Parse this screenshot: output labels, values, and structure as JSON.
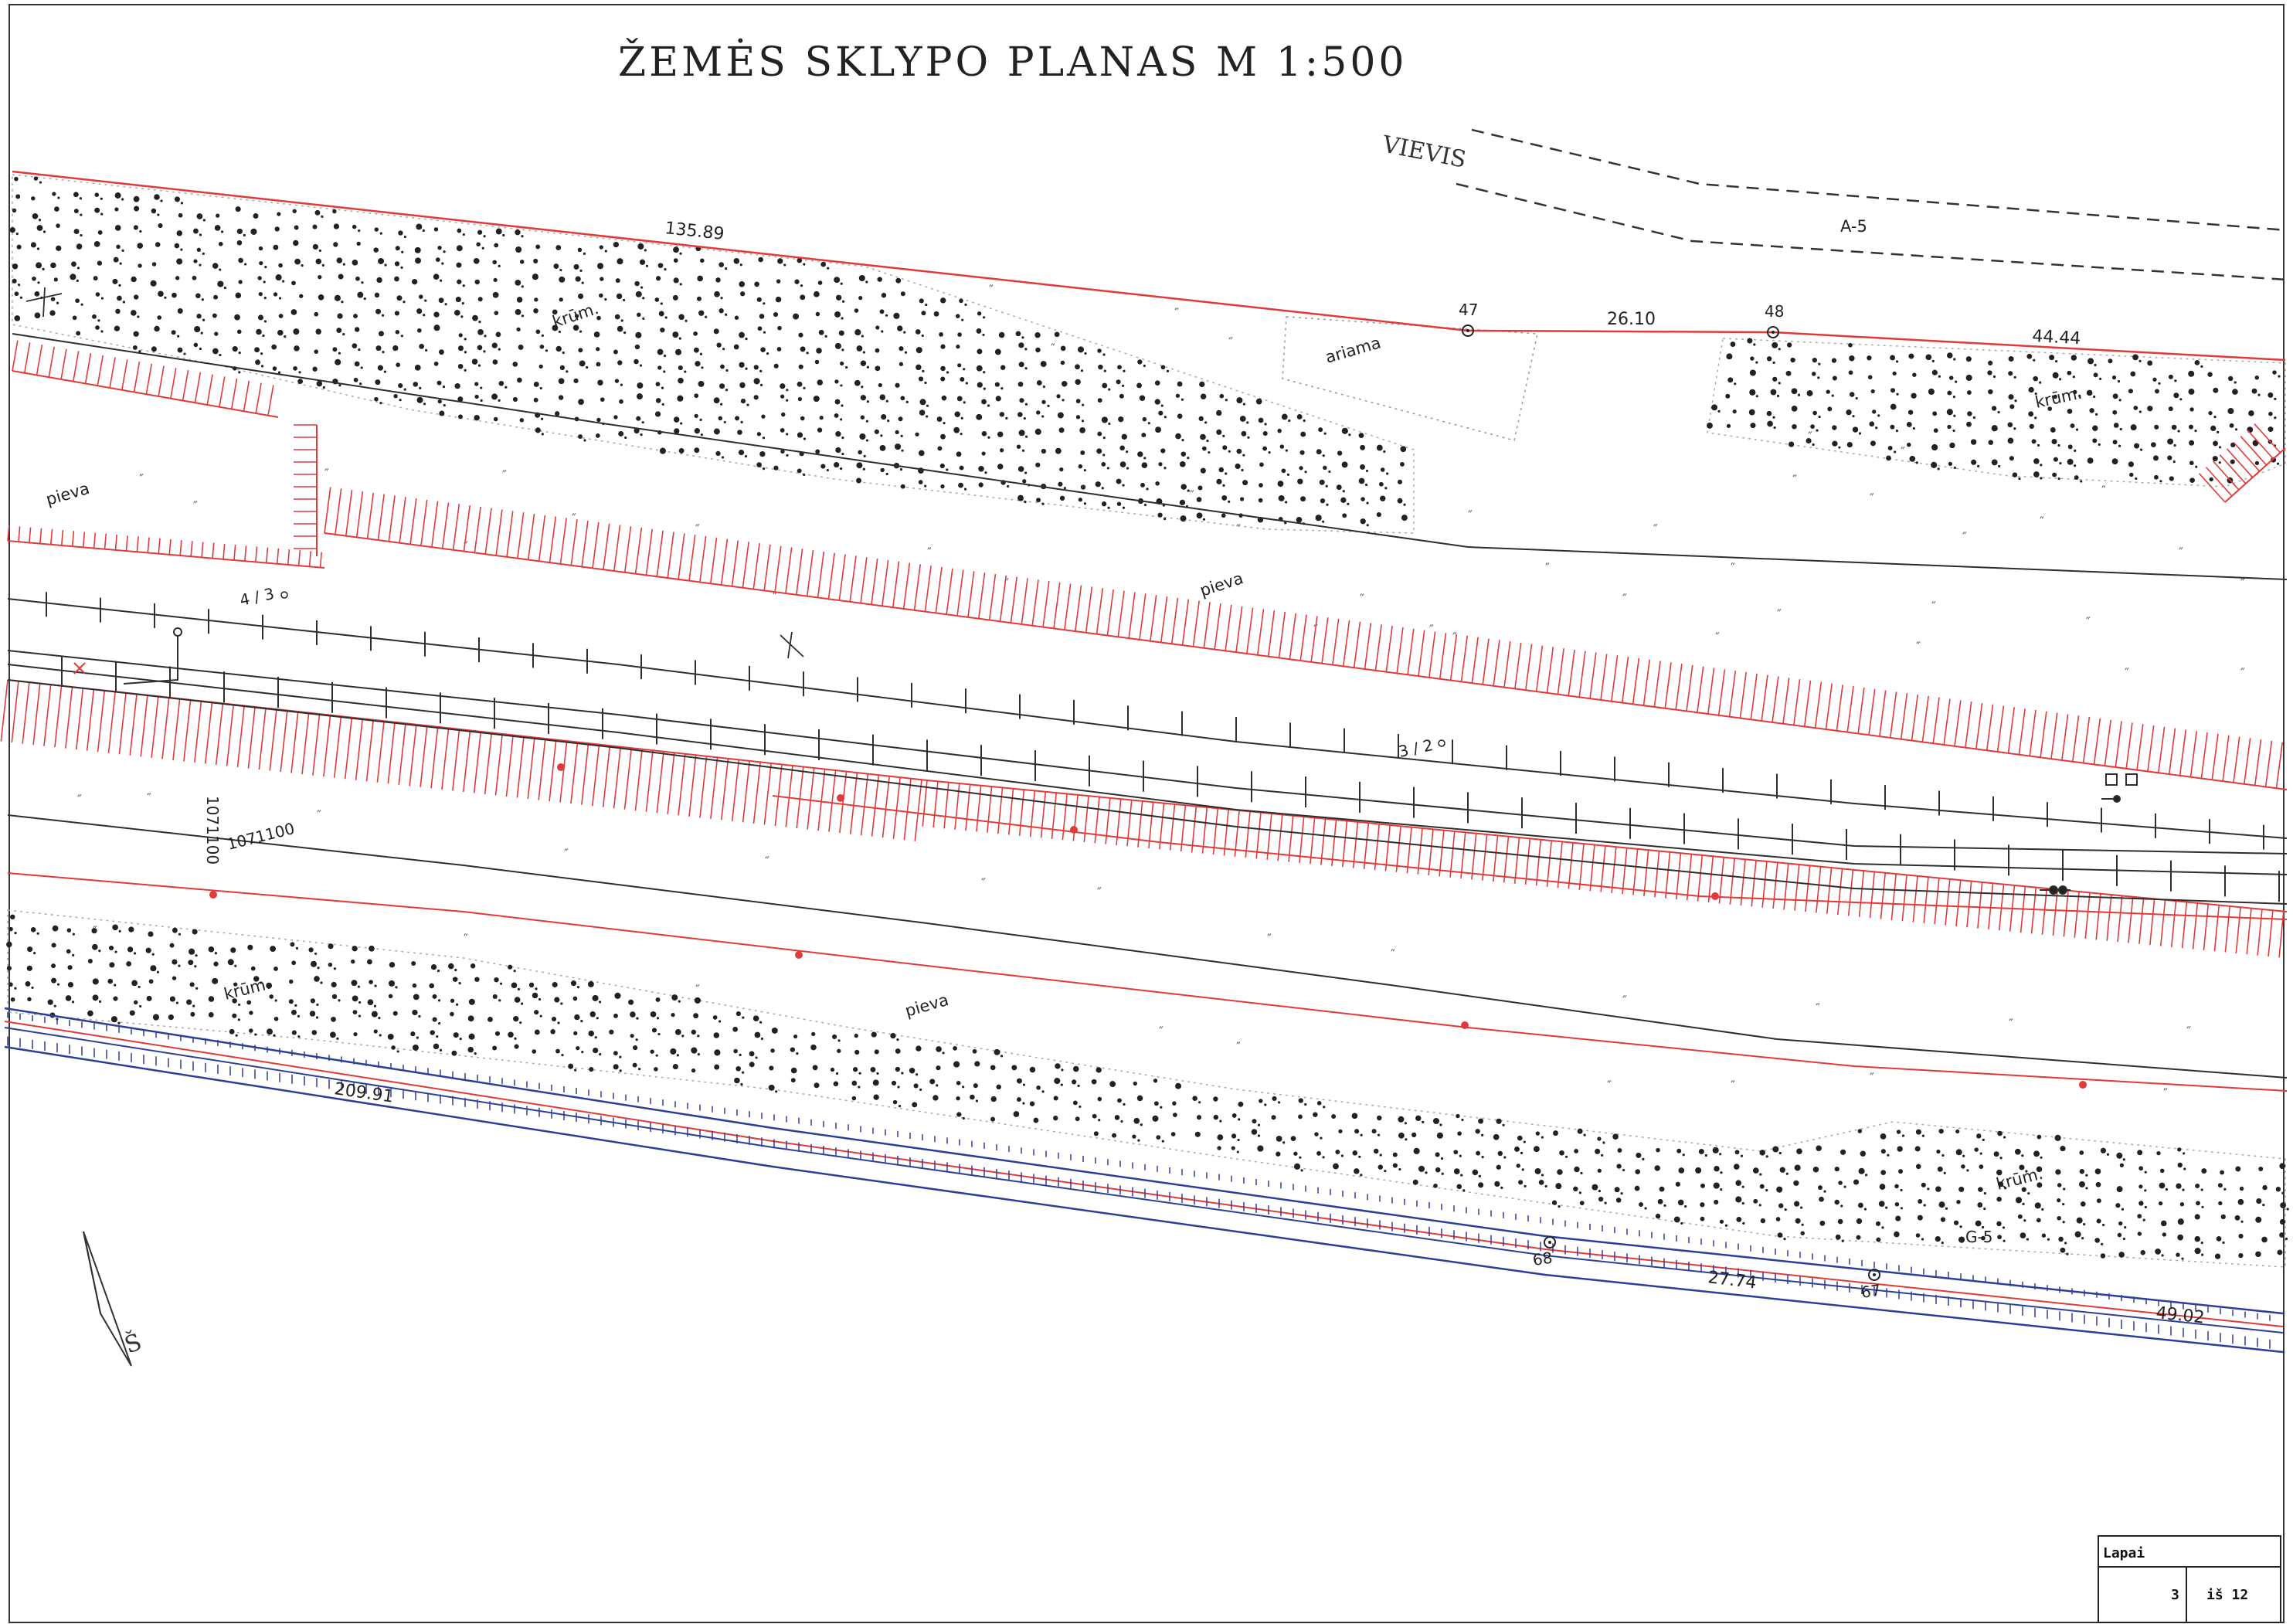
{
  "title": "ŽEMĖS   SKLYPO   PLANAS   M 1:500",
  "road_name": "VIEVIS",
  "road_code": "A-5",
  "north_arrow": {
    "label": "Š"
  },
  "boundary_points": [
    {
      "id": "47"
    },
    {
      "id": "48"
    },
    {
      "id": "68"
    },
    {
      "id": "67"
    }
  ],
  "dimensions": {
    "top_left": "135.89",
    "top_mid": "26.10",
    "top_right": "44.44",
    "bottom_left": "209.91",
    "bottom_mid": "27.74",
    "bottom_right": "49.02"
  },
  "land_labels": {
    "krum_1": "krūm.",
    "krum_2": "krūm.",
    "krum_3": "krūm.",
    "krum_4": "krūm.",
    "ariama": "ariama",
    "pieva_1": "pieva",
    "pieva_2": "pieva",
    "pieva_3": "pieva"
  },
  "marks": {
    "km_1": "4 / 3",
    "km_2": "3 / 2",
    "km_3": "G-5",
    "cable_code": "1071100",
    "cable_code_vertical": "1071100"
  },
  "sheet_box": {
    "label": "Lapai",
    "page": "3",
    "of_label": "iš 12"
  },
  "colors": {
    "boundary": "#e03a3a",
    "rail": "#2e2e2e",
    "utility_blue": "#2b3f9a",
    "shrub_dot": "#222222",
    "grass": "#555555"
  }
}
